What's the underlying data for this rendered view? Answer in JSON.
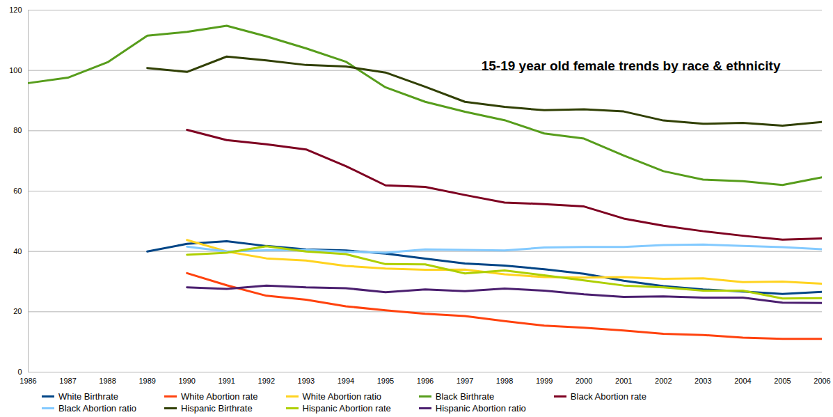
{
  "chart_data": {
    "type": "line",
    "title": "15-19 year old female trends by race & ethnicity",
    "x": [
      1986,
      1987,
      1988,
      1989,
      1990,
      1991,
      1992,
      1993,
      1994,
      1995,
      1996,
      1997,
      1998,
      1999,
      2000,
      2001,
      2002,
      2003,
      2004,
      2005,
      2006
    ],
    "xlim": [
      1986,
      2006
    ],
    "xticks": [
      1986,
      1987,
      1988,
      1989,
      1990,
      1991,
      1992,
      1993,
      1994,
      1995,
      1996,
      1997,
      1998,
      1999,
      2000,
      2001,
      2002,
      2003,
      2004,
      2005,
      2006
    ],
    "ylim": [
      0,
      120
    ],
    "yticks": [
      0,
      20,
      40,
      60,
      80,
      100,
      120
    ],
    "grid": true,
    "legend": "bottom",
    "series": [
      {
        "name": "White Birthrate",
        "color": "#004586",
        "values": [
          null,
          null,
          null,
          40.0,
          42.5,
          43.4,
          41.8,
          40.7,
          40.3,
          39.3,
          37.6,
          36.0,
          35.3,
          34.1,
          32.6,
          30.3,
          28.5,
          27.4,
          26.7,
          25.9,
          26.6
        ]
      },
      {
        "name": "White Abortion rate",
        "color": "#ff420e",
        "values": [
          null,
          null,
          null,
          null,
          32.8,
          28.8,
          25.3,
          24.0,
          21.8,
          20.5,
          19.3,
          18.6,
          16.9,
          15.4,
          14.7,
          13.8,
          12.7,
          12.3,
          11.4,
          11.0,
          11.0
        ]
      },
      {
        "name": "White Abortion ratio",
        "color": "#ffd320",
        "values": [
          null,
          null,
          null,
          null,
          43.8,
          40.0,
          37.7,
          37.0,
          35.2,
          34.3,
          33.9,
          34.0,
          32.4,
          31.5,
          31.3,
          31.5,
          30.9,
          31.1,
          29.8,
          30.0,
          29.3
        ]
      },
      {
        "name": "Black Birthrate",
        "color": "#579d1c",
        "values": [
          95.8,
          97.6,
          102.7,
          111.5,
          112.8,
          114.8,
          111.3,
          107.3,
          102.9,
          94.4,
          89.6,
          86.3,
          83.5,
          79.1,
          77.4,
          71.8,
          66.6,
          63.8,
          63.3,
          62.0,
          64.6
        ]
      },
      {
        "name": "Black Abortion rate",
        "color": "#7e0021",
        "values": [
          null,
          null,
          null,
          null,
          80.3,
          76.9,
          75.5,
          73.8,
          68.3,
          61.9,
          61.4,
          58.7,
          56.2,
          55.7,
          54.9,
          50.9,
          48.5,
          46.7,
          45.2,
          43.9,
          44.3
        ]
      },
      {
        "name": "Black Abortion ratio",
        "color": "#83caff",
        "values": [
          null,
          null,
          null,
          null,
          41.6,
          40.0,
          40.4,
          40.5,
          39.9,
          39.6,
          40.7,
          40.5,
          40.3,
          41.3,
          41.5,
          41.5,
          42.1,
          42.3,
          41.8,
          41.4,
          40.7
        ]
      },
      {
        "name": "Hispanic Birthrate",
        "color": "#314004",
        "values": [
          null,
          null,
          null,
          100.8,
          99.5,
          104.6,
          103.3,
          101.8,
          101.3,
          99.3,
          94.6,
          89.6,
          87.9,
          86.8,
          87.1,
          86.4,
          83.4,
          82.3,
          82.6,
          81.7,
          82.9
        ]
      },
      {
        "name": "Hispanic Abortion rate",
        "color": "#aecf00",
        "values": [
          null,
          null,
          null,
          null,
          38.9,
          39.6,
          41.7,
          40.0,
          39.1,
          35.8,
          35.7,
          32.7,
          33.7,
          32.1,
          30.4,
          28.7,
          28.1,
          27.0,
          27.0,
          24.4,
          24.5
        ]
      },
      {
        "name": "Hispanic Abortion ratio",
        "color": "#4b1f6f",
        "values": [
          null,
          null,
          null,
          null,
          28.1,
          27.6,
          28.7,
          28.1,
          27.8,
          26.5,
          27.4,
          26.8,
          27.7,
          27.0,
          25.8,
          24.9,
          25.1,
          24.7,
          24.7,
          23.0,
          22.9
        ]
      }
    ]
  }
}
